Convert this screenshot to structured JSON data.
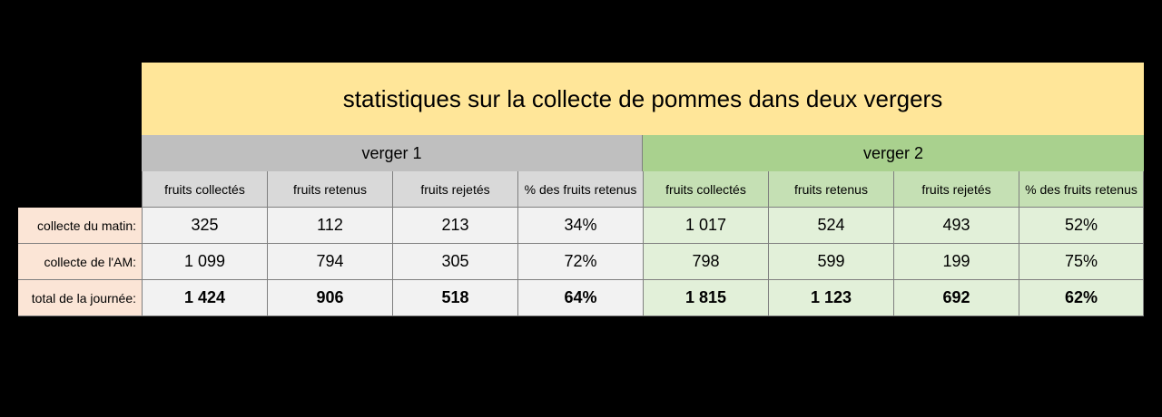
{
  "table": {
    "title": "statistiques sur la collecte de pommes dans deux vergers",
    "groups": [
      "verger 1",
      "verger 2"
    ],
    "columns": [
      "fruits collectés",
      "fruits retenus",
      "fruits rejetés",
      "% des fruits retenus"
    ],
    "rows": [
      {
        "label": "collecte du matin:",
        "v1": [
          "325",
          "112",
          "213",
          "34%"
        ],
        "v2": [
          "1 017",
          "524",
          "493",
          "52%"
        ]
      },
      {
        "label": "collecte de l'AM:",
        "v1": [
          "1 099",
          "794",
          "305",
          "72%"
        ],
        "v2": [
          "798",
          "599",
          "199",
          "75%"
        ]
      },
      {
        "label": "total de la journée:",
        "v1": [
          "1 424",
          "906",
          "518",
          "64%"
        ],
        "v2": [
          "1 815",
          "1 123",
          "692",
          "62%"
        ]
      }
    ]
  },
  "colors": {
    "title_bg": "#ffe699",
    "verger1_header": "#bfbfbf",
    "verger2_header": "#a9d18e",
    "row_label_bg": "#fbe5d6"
  }
}
